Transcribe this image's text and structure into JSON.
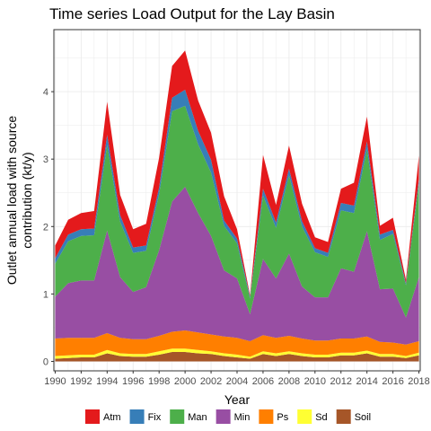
{
  "chart_data": {
    "type": "area",
    "stacked": true,
    "title": "Time series Load Output for the Lay Basin",
    "xlabel": "Year",
    "ylabel_lines": [
      "Outlet annual load with source",
      "contribution (kt/y)"
    ],
    "x": [
      1990,
      1991,
      1992,
      1993,
      1994,
      1995,
      1996,
      1997,
      1998,
      1999,
      2000,
      2001,
      2002,
      2003,
      2004,
      2005,
      2006,
      2007,
      2008,
      2009,
      2010,
      2011,
      2012,
      2013,
      2014,
      2015,
      2016,
      2017,
      2018
    ],
    "xticks": [
      "1990",
      "1992",
      "1994",
      "1996",
      "1998",
      "2000",
      "2002",
      "2004",
      "2006",
      "2008",
      "2010",
      "2012",
      "2014",
      "2016",
      "2018"
    ],
    "xlim": [
      1989.9,
      2018.1
    ],
    "ylim": [
      -0.14,
      4.92
    ],
    "yticks": [
      "0",
      "1",
      "2",
      "3",
      "4"
    ],
    "grid": true,
    "legend_position": "bottom",
    "series": [
      {
        "name": "Soil",
        "color": "#a65628",
        "values": [
          0.04,
          0.05,
          0.06,
          0.06,
          0.12,
          0.08,
          0.07,
          0.07,
          0.1,
          0.14,
          0.14,
          0.12,
          0.11,
          0.08,
          0.06,
          0.04,
          0.11,
          0.08,
          0.11,
          0.08,
          0.06,
          0.06,
          0.09,
          0.09,
          0.12,
          0.07,
          0.07,
          0.05,
          0.09
        ]
      },
      {
        "name": "Sd",
        "color": "#ffff33",
        "values": [
          0.04,
          0.04,
          0.04,
          0.04,
          0.05,
          0.04,
          0.04,
          0.04,
          0.05,
          0.05,
          0.05,
          0.05,
          0.04,
          0.04,
          0.04,
          0.03,
          0.04,
          0.04,
          0.04,
          0.04,
          0.04,
          0.04,
          0.04,
          0.04,
          0.04,
          0.04,
          0.04,
          0.03,
          0.04
        ]
      },
      {
        "name": "Ps",
        "color": "#ff7f00",
        "values": [
          0.26,
          0.26,
          0.25,
          0.25,
          0.25,
          0.23,
          0.22,
          0.22,
          0.23,
          0.25,
          0.27,
          0.26,
          0.25,
          0.25,
          0.25,
          0.23,
          0.24,
          0.23,
          0.23,
          0.22,
          0.21,
          0.21,
          0.21,
          0.21,
          0.21,
          0.18,
          0.17,
          0.17,
          0.17
        ]
      },
      {
        "name": "Min",
        "color": "#984ea3",
        "values": [
          0.62,
          0.81,
          0.85,
          0.85,
          1.52,
          0.9,
          0.7,
          0.77,
          1.27,
          1.93,
          2.13,
          1.77,
          1.46,
          0.98,
          0.88,
          0.4,
          1.13,
          0.88,
          1.22,
          0.77,
          0.64,
          0.64,
          1.04,
          0.99,
          1.56,
          0.78,
          0.8,
          0.4,
          0.95
        ]
      },
      {
        "name": "Man",
        "color": "#4daf4a",
        "values": [
          0.49,
          0.62,
          0.66,
          0.67,
          1.27,
          0.82,
          0.58,
          0.54,
          0.83,
          1.34,
          1.2,
          1.02,
          0.94,
          0.66,
          0.52,
          0.23,
          0.94,
          0.75,
          1.16,
          0.89,
          0.67,
          0.6,
          0.86,
          0.87,
          1.22,
          0.73,
          0.81,
          0.48,
          1.39
        ]
      },
      {
        "name": "Fix",
        "color": "#377eb8",
        "values": [
          0.08,
          0.1,
          0.1,
          0.1,
          0.15,
          0.1,
          0.08,
          0.08,
          0.1,
          0.2,
          0.24,
          0.2,
          0.19,
          0.08,
          0.07,
          0.03,
          0.1,
          0.08,
          0.1,
          0.08,
          0.06,
          0.06,
          0.11,
          0.11,
          0.11,
          0.08,
          0.06,
          0.03,
          0.06
        ]
      },
      {
        "name": "Atm",
        "color": "#e41a1c",
        "values": [
          0.19,
          0.22,
          0.24,
          0.26,
          0.49,
          0.3,
          0.27,
          0.32,
          0.44,
          0.47,
          0.58,
          0.45,
          0.4,
          0.36,
          0.14,
          0.02,
          0.5,
          0.26,
          0.34,
          0.26,
          0.16,
          0.16,
          0.21,
          0.34,
          0.37,
          0.13,
          0.18,
          0.05,
          0.35
        ]
      }
    ],
    "legend_order": [
      "Atm",
      "Fix",
      "Man",
      "Min",
      "Ps",
      "Sd",
      "Soil"
    ]
  }
}
